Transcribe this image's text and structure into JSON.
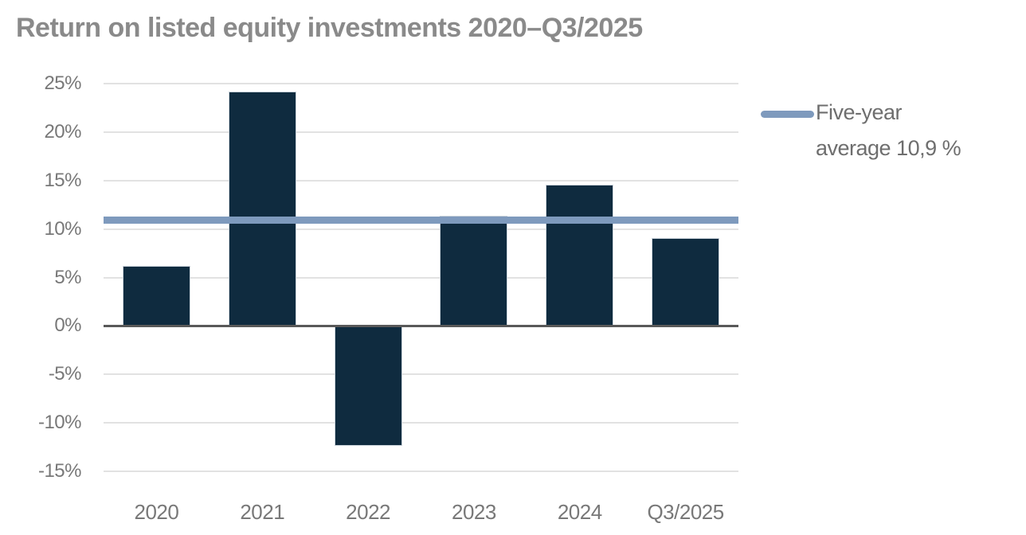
{
  "chart": {
    "title": "Return on listed equity investments 2020–Q3/2025"
  },
  "chart_data": {
    "type": "bar",
    "title": "Return on listed equity investments 2020–Q3/2025",
    "categories": [
      "2020",
      "2021",
      "2022",
      "2023",
      "2024",
      "Q3/2025"
    ],
    "values": [
      6.2,
      24.2,
      -12.4,
      11.4,
      14.6,
      9.1
    ],
    "value_unit": "%",
    "average_line": {
      "value": 10.9,
      "label": "Five-year average 10,9 %",
      "label_lines": [
        "Five-year",
        "average 10,9 %"
      ]
    },
    "xlabel": "",
    "ylabel": "",
    "ylim": [
      -15,
      25
    ],
    "yticks": [
      25,
      20,
      15,
      10,
      5,
      0,
      -5,
      -10,
      -15
    ],
    "ytick_suffix": "%",
    "grid": true,
    "legend_position": "right",
    "colors": {
      "bar": "#0f2b3f",
      "bar_border": "#c9d2da",
      "average_line": "#7e9abd",
      "gridline": "#e2e2e2",
      "zero_axis": "#595959",
      "title_text": "#8a8a8a",
      "tick_text": "#787878",
      "legend_text": "#6e6e6e",
      "background": "#ffffff"
    }
  }
}
